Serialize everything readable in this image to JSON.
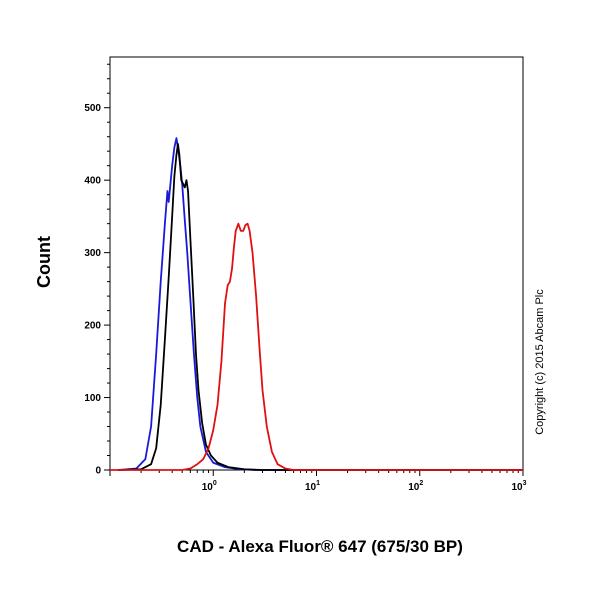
{
  "chart_data": {
    "type": "line",
    "title": "",
    "xlabel": "CAD - Alexa Fluor® 647 (675/30 BP)",
    "ylabel": "Count",
    "x_scale": "log",
    "xlim": [
      0.1,
      1000
    ],
    "ylim": [
      0,
      570
    ],
    "y_ticks": [
      0,
      100,
      200,
      300,
      400,
      500
    ],
    "x_ticks": [
      {
        "value": 1,
        "base": "10",
        "exp": "0"
      },
      {
        "value": 10,
        "base": "10",
        "exp": "1"
      },
      {
        "value": 100,
        "base": "10",
        "exp": "2"
      },
      {
        "value": 1000,
        "base": "10",
        "exp": "3"
      }
    ],
    "grid": false,
    "legend": "none",
    "annotation": "Copyright (c) 2015 Abcam Plc",
    "series": [
      {
        "color": "#1a1ad6",
        "points": [
          [
            0.12,
            0
          ],
          [
            0.18,
            2
          ],
          [
            0.22,
            15
          ],
          [
            0.25,
            60
          ],
          [
            0.28,
            160
          ],
          [
            0.31,
            260
          ],
          [
            0.34,
            340
          ],
          [
            0.36,
            385
          ],
          [
            0.37,
            370
          ],
          [
            0.385,
            395
          ],
          [
            0.4,
            420
          ],
          [
            0.42,
            445
          ],
          [
            0.44,
            458
          ],
          [
            0.46,
            440
          ],
          [
            0.48,
            420
          ],
          [
            0.5,
            395
          ],
          [
            0.53,
            345
          ],
          [
            0.56,
            300
          ],
          [
            0.6,
            235
          ],
          [
            0.65,
            160
          ],
          [
            0.7,
            100
          ],
          [
            0.75,
            60
          ],
          [
            0.85,
            25
          ],
          [
            1.0,
            10
          ],
          [
            1.3,
            4
          ],
          [
            1.8,
            1
          ],
          [
            2.5,
            0
          ],
          [
            1000,
            0
          ]
        ]
      },
      {
        "color": "#000000",
        "points": [
          [
            0.12,
            0
          ],
          [
            0.2,
            1
          ],
          [
            0.25,
            8
          ],
          [
            0.28,
            30
          ],
          [
            0.31,
            90
          ],
          [
            0.34,
            180
          ],
          [
            0.37,
            265
          ],
          [
            0.4,
            350
          ],
          [
            0.42,
            405
          ],
          [
            0.44,
            435
          ],
          [
            0.455,
            450
          ],
          [
            0.47,
            435
          ],
          [
            0.49,
            400
          ],
          [
            0.51,
            395
          ],
          [
            0.53,
            390
          ],
          [
            0.55,
            400
          ],
          [
            0.57,
            385
          ],
          [
            0.6,
            320
          ],
          [
            0.64,
            240
          ],
          [
            0.68,
            160
          ],
          [
            0.72,
            110
          ],
          [
            0.78,
            65
          ],
          [
            0.85,
            35
          ],
          [
            0.95,
            20
          ],
          [
            1.1,
            10
          ],
          [
            1.4,
            4
          ],
          [
            2.0,
            1
          ],
          [
            3.0,
            0
          ],
          [
            1000,
            0
          ]
        ]
      },
      {
        "color": "#e01010",
        "points": [
          [
            0.1,
            0
          ],
          [
            0.5,
            0
          ],
          [
            0.6,
            2
          ],
          [
            0.7,
            8
          ],
          [
            0.8,
            15
          ],
          [
            0.9,
            30
          ],
          [
            1.0,
            55
          ],
          [
            1.1,
            90
          ],
          [
            1.2,
            150
          ],
          [
            1.3,
            230
          ],
          [
            1.38,
            255
          ],
          [
            1.45,
            260
          ],
          [
            1.52,
            278
          ],
          [
            1.58,
            305
          ],
          [
            1.65,
            330
          ],
          [
            1.75,
            340
          ],
          [
            1.85,
            330
          ],
          [
            1.95,
            330
          ],
          [
            2.05,
            338
          ],
          [
            2.15,
            340
          ],
          [
            2.25,
            330
          ],
          [
            2.4,
            300
          ],
          [
            2.6,
            240
          ],
          [
            2.8,
            170
          ],
          [
            3.0,
            110
          ],
          [
            3.3,
            60
          ],
          [
            3.7,
            25
          ],
          [
            4.2,
            8
          ],
          [
            5.0,
            2
          ],
          [
            6.0,
            0
          ],
          [
            1000,
            0
          ]
        ]
      }
    ]
  }
}
